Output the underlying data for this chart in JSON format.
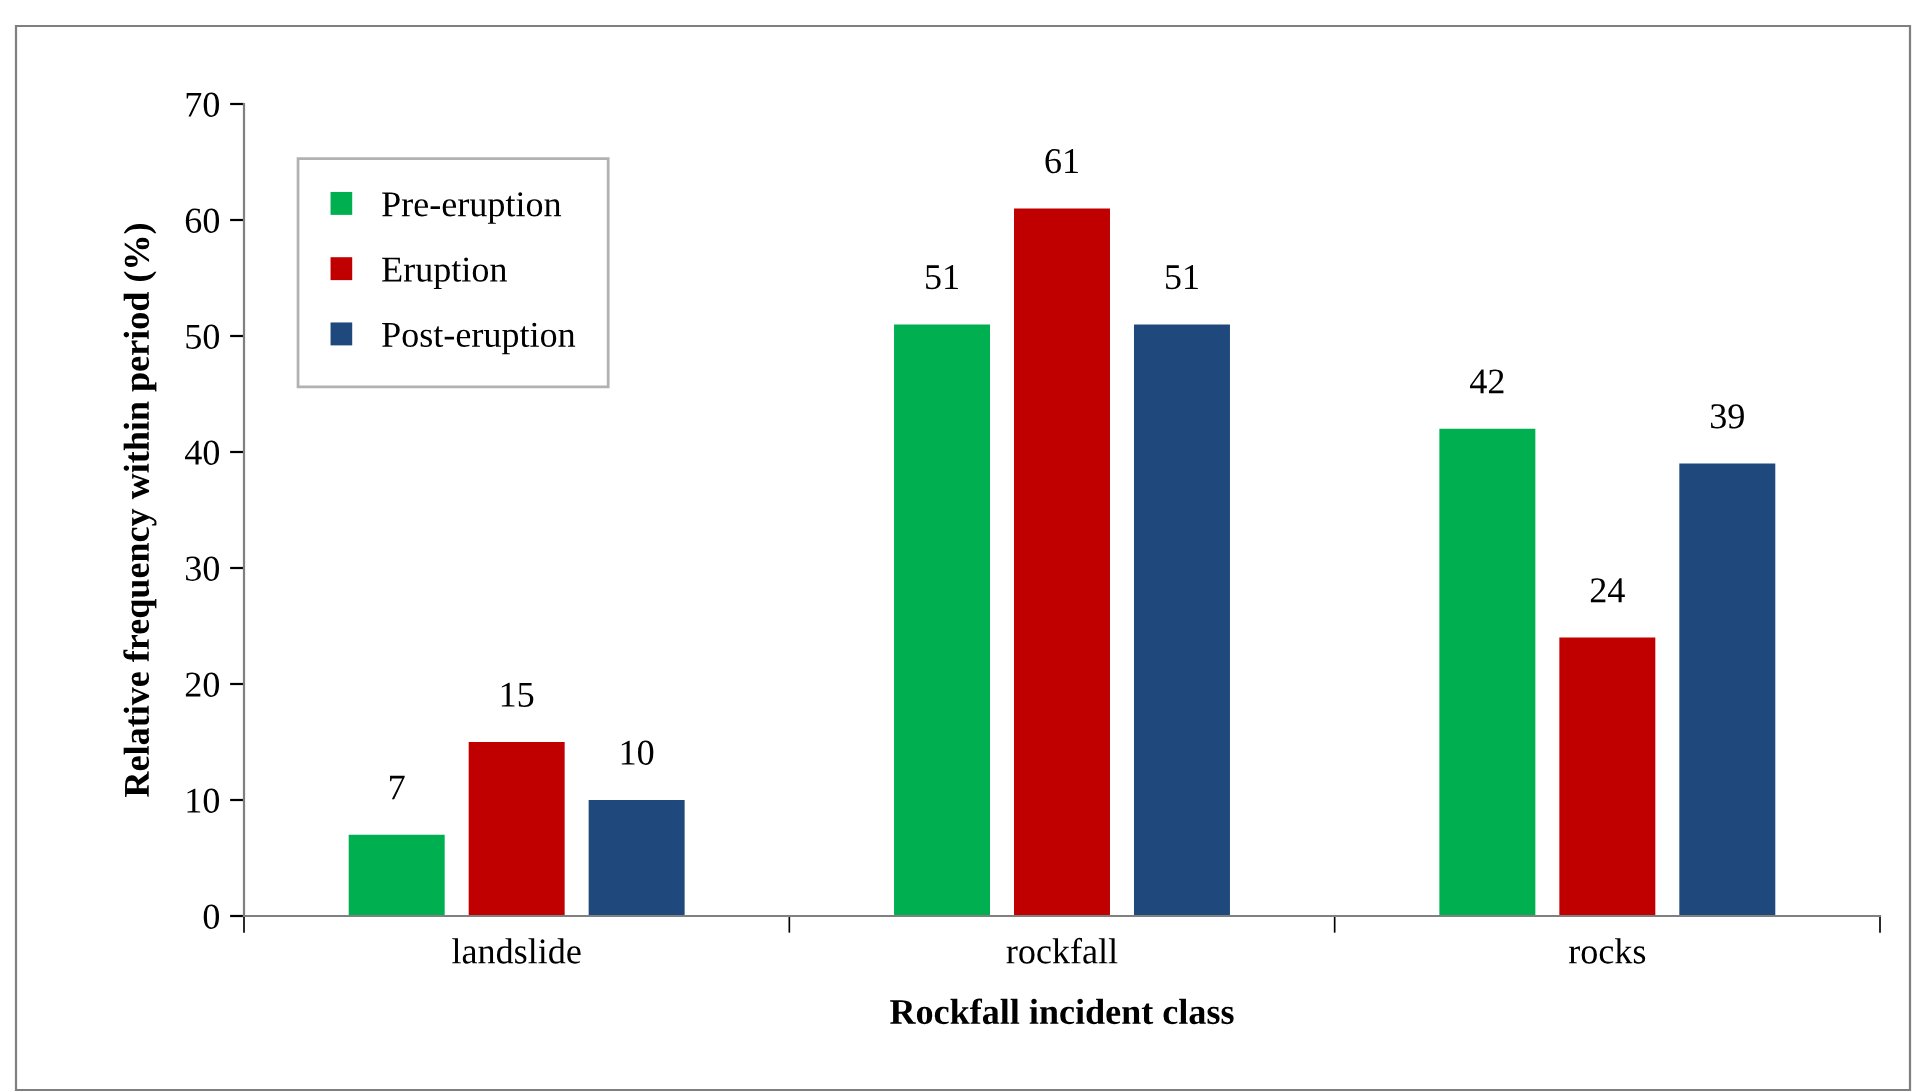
{
  "chart_data": {
    "type": "bar",
    "xlabel": "Rockfall incident class",
    "ylabel": "Relative frequency within period (%)",
    "categories": [
      "landslide",
      "rockfall",
      "rocks"
    ],
    "series": [
      {
        "name": "Pre-eruption",
        "color": "#00b050",
        "values": [
          7,
          51,
          42
        ]
      },
      {
        "name": "Eruption",
        "color": "#c00000",
        "values": [
          15,
          61,
          24
        ]
      },
      {
        "name": "Post-eruption",
        "color": "#1f497d",
        "values": [
          10,
          51,
          39
        ]
      }
    ],
    "ylim": [
      0,
      70
    ],
    "yticks": [
      0,
      10,
      20,
      30,
      40,
      50,
      60,
      70
    ],
    "grid": false,
    "legend": "top left",
    "data_labels": true
  }
}
